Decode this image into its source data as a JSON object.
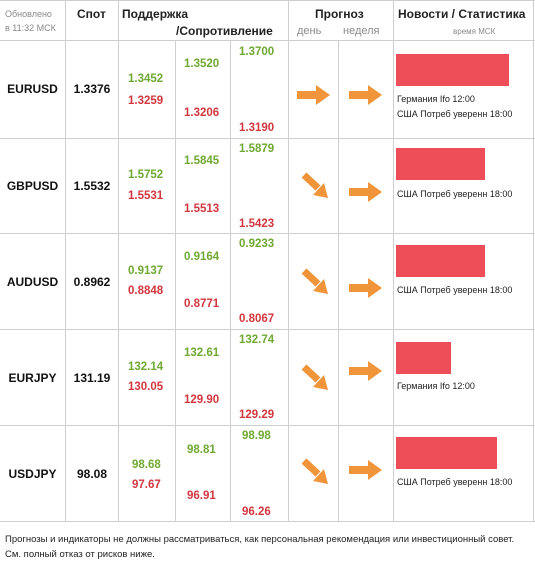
{
  "header": {
    "updated": "Обновлено",
    "time": "в 11:32 МСК",
    "spot": "Спот",
    "support": "Поддержка",
    "resistance": "/Сопротивление",
    "forecast": "Прогноз",
    "day": "день",
    "week": "неделя",
    "news": "Новости / Статистика",
    "news_time": "время МСК"
  },
  "rows": [
    {
      "pair": "EURUSD",
      "spot": "1.3376",
      "levels": {
        "a1": "1.3452",
        "a2": "1.3259",
        "b1": "1.3520",
        "b2": "1.3206",
        "c1": "1.3700",
        "c2": "1.3190"
      },
      "forecast_day": "right",
      "forecast_week": "right",
      "news_bar_fraction": 0.98,
      "news": [
        "Германия Ifo 12:00",
        "США Потреб уверенн 18:00"
      ]
    },
    {
      "pair": "GBPUSD",
      "spot": "1.5532",
      "levels": {
        "a1": "1.5752",
        "a2": "1.5531",
        "b1": "1.5845",
        "b2": "1.5513",
        "c1": "1.5879",
        "c2": "1.5423"
      },
      "forecast_day": "down-right",
      "forecast_week": "right",
      "news_bar_fraction": 0.77,
      "news": [
        "США Потреб уверенн 18:00"
      ]
    },
    {
      "pair": "AUDUSD",
      "spot": "0.8962",
      "levels": {
        "a1": "0.9137",
        "a2": "0.8848",
        "b1": "0.9164",
        "b2": "0.8771",
        "c1": "0.9233",
        "c2": "0.8067"
      },
      "forecast_day": "down-right",
      "forecast_week": "right",
      "news_bar_fraction": 0.77,
      "news": [
        "США Потреб уверенн 18:00"
      ]
    },
    {
      "pair": "EURJPY",
      "spot": "131.19",
      "levels": {
        "a1": "132.14",
        "a2": "130.05",
        "b1": "132.61",
        "b2": "129.90",
        "c1": "132.74",
        "c2": "129.29"
      },
      "forecast_day": "down-right",
      "forecast_week": "right",
      "news_bar_fraction": 0.48,
      "news": [
        "Германия Ifo 12:00"
      ]
    },
    {
      "pair": "USDJPY",
      "spot": "98.08",
      "levels": {
        "a1": "98.68",
        "a2": "97.67",
        "b1": "98.81",
        "b2": "96.91",
        "c1": "98.98",
        "c2": "96.26"
      },
      "forecast_day": "down-right",
      "forecast_week": "right",
      "news_bar_fraction": 0.88,
      "news": [
        "США Потреб уверенн 18:00"
      ]
    }
  ],
  "disclaimer": "Прогнозы и индикаторы не должны рассматриваться, как персональная рекомендация или инвестиционный совет. См. полный отказ от рисков ниже.",
  "colors": {
    "support": "#6fa832",
    "resistance": "#d2373f",
    "arrow": "#f0953a",
    "news_bar": "#ee4e57"
  }
}
